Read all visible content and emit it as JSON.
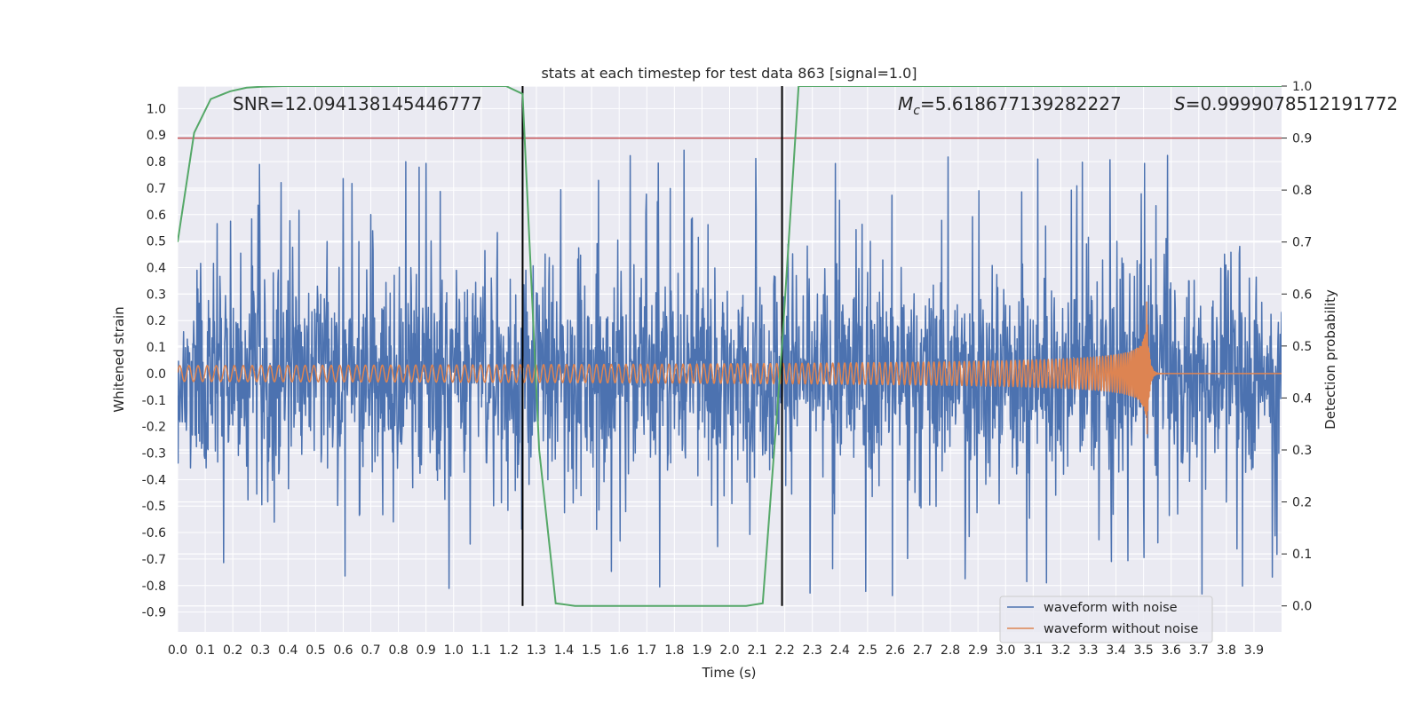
{
  "chart_data": {
    "type": "line",
    "title": "stats at each timestep for test data 863 [signal=1.0]",
    "xlabel": "Time (s)",
    "ylabel": "Whitened strain",
    "y2label": "Detection probability",
    "xlim": [
      0.0,
      4.0
    ],
    "ylim": [
      -0.975,
      1.085
    ],
    "y2lim": [
      -0.05,
      1.0
    ],
    "x_ticks": [
      "0.0",
      "0.1",
      "0.2",
      "0.3",
      "0.4",
      "0.5",
      "0.6",
      "0.7",
      "0.8",
      "0.9",
      "1.0",
      "1.1",
      "1.2",
      "1.3",
      "1.4",
      "1.5",
      "1.6",
      "1.7",
      "1.8",
      "1.9",
      "2.0",
      "2.1",
      "2.2",
      "2.3",
      "2.4",
      "2.5",
      "2.6",
      "2.7",
      "2.8",
      "2.9",
      "3.0",
      "3.1",
      "3.2",
      "3.3",
      "3.4",
      "3.5",
      "3.6",
      "3.7",
      "3.8",
      "3.9"
    ],
    "y_ticks": [
      "1.0",
      "0.9",
      "0.8",
      "0.7",
      "0.6",
      "0.5",
      "0.4",
      "0.3",
      "0.2",
      "0.1",
      "0.0",
      "-0.1",
      "-0.2",
      "-0.3",
      "-0.4",
      "-0.5",
      "-0.6",
      "-0.7",
      "-0.8",
      "-0.9"
    ],
    "y2_ticks": [
      "1.0",
      "0.9",
      "0.8",
      "0.7",
      "0.6",
      "0.5",
      "0.4",
      "0.3",
      "0.2",
      "0.1",
      "0.0"
    ],
    "series": [
      {
        "name": "waveform with noise",
        "axis": "left",
        "color": "#4c72b0",
        "description": "dense gaussian-like noise, envelope approx +/-0.5 with spikes up to 1.0 and down to -0.88"
      },
      {
        "name": "waveform without noise",
        "axis": "left",
        "color": "#dd8452",
        "chirp": {
          "start_amplitude": 0.03,
          "peak_amplitude": 0.32,
          "merger_time": 3.51,
          "start_cycles_per_second": 30,
          "end_cycles_per_second": 400
        }
      },
      {
        "name": "detection probability",
        "axis": "right",
        "color": "#55a868",
        "x": [
          0.0,
          0.06,
          0.12,
          0.19,
          0.25,
          0.31,
          0.38,
          0.5,
          0.75,
          1.0,
          1.19,
          1.25,
          1.31,
          1.37,
          1.44,
          1.5,
          1.75,
          2.0,
          2.06,
          2.12,
          2.19,
          2.25,
          2.5,
          3.0,
          3.5,
          4.0
        ],
        "y": [
          0.7,
          0.91,
          0.975,
          0.99,
          0.997,
          0.999,
          1.0,
          1.0,
          1.0,
          1.0,
          1.0,
          0.985,
          0.3,
          0.005,
          0.0,
          0.0,
          0.0,
          0.0,
          0.0,
          0.005,
          0.5,
          1.0,
          1.0,
          1.0,
          1.0,
          1.0
        ]
      }
    ],
    "threshold": {
      "axis": "right",
      "value": 0.9,
      "color": "#c44e52"
    },
    "vertical_markers": [
      1.25,
      2.19
    ],
    "annotations": {
      "snr": "SNR=12.094138145446777",
      "mc_symbol": "M",
      "mc_subscript": "c",
      "mc_value": "=5.618677139282227",
      "s_symbol": "S",
      "s_value": "=0.9999078512191772"
    },
    "legend": {
      "placement": "lower-right",
      "entries": [
        {
          "label": "waveform with noise",
          "color": "#4c72b0"
        },
        {
          "label": "waveform without noise",
          "color": "#dd8452"
        }
      ]
    },
    "style": {
      "background": "#eaeaf2",
      "grid": true,
      "grid_color": "#ffffff"
    }
  }
}
